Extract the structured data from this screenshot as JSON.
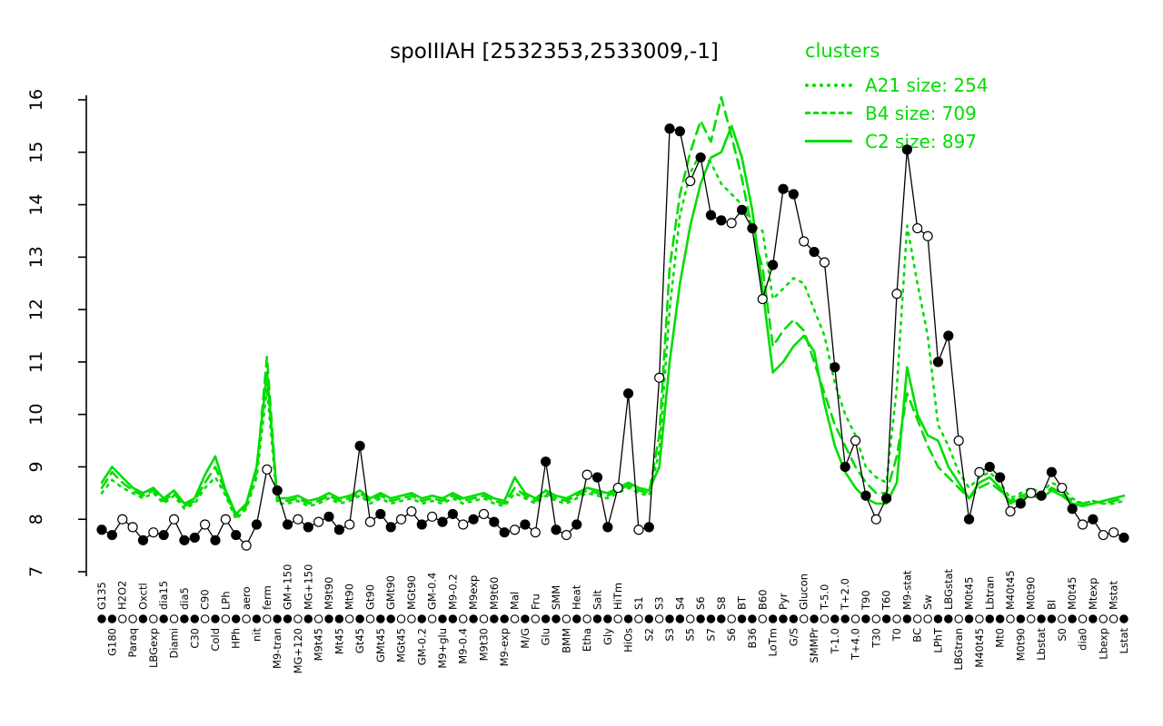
{
  "title": "spoIIIAH [2532353,2533009,-1]",
  "legend": {
    "heading": "clusters",
    "entries": [
      {
        "name": "A21",
        "label": "A21 size: 254",
        "style": "dotted"
      },
      {
        "name": "B4",
        "label": "B4 size: 709",
        "style": "dashed"
      },
      {
        "name": "C2",
        "label": "C2 size: 897",
        "style": "solid"
      }
    ]
  },
  "colors": {
    "cluster": "#00dd00",
    "gene": "#000000"
  },
  "chart_data": {
    "type": "line",
    "title": "spoIIIAH [2532353,2533009,-1]",
    "xlabel": "",
    "ylabel": "",
    "ylim": [
      7,
      16
    ],
    "yticks": [
      7,
      8,
      9,
      10,
      11,
      12,
      13,
      14,
      15,
      16
    ],
    "grid": false,
    "legend_position": "top-right",
    "categories": [
      "G135",
      "G180",
      "H2O2",
      "Paraq",
      "Oxctl",
      "LBGexp",
      "dia15",
      "Diami",
      "dia5",
      "C30",
      "C90",
      "Cold",
      "LPh",
      "HPh",
      "aero",
      "nit",
      "ferm",
      "M9-tran",
      "GM+150",
      "MG+120",
      "MG+150",
      "M9t45",
      "M9t90",
      "Mt45",
      "Mt90",
      "Gt45",
      "Gt90",
      "GMt45",
      "GMt90",
      "MGt45",
      "MGt90",
      "GM-0.2",
      "GM-0.4",
      "M9+glu",
      "M9-0.2",
      "M9-0.4",
      "M9exp",
      "M9t30",
      "M9t60",
      "M9-exp",
      "Mal",
      "M/G",
      "Fru",
      "Glu",
      "SMM",
      "BMM",
      "Heat",
      "Etha",
      "Salt",
      "Gly",
      "HiTm",
      "HiOs",
      "S1",
      "S2",
      "S3",
      "S3",
      "S4",
      "S5",
      "S6",
      "S7",
      "S8",
      "S6",
      "BT",
      "B36",
      "B60",
      "LoTm",
      "Pyr",
      "G/S",
      "Glucon",
      "SMMPr",
      "T-5.0",
      "T-1.0",
      "T+2.0",
      "T+4.0",
      "T90",
      "T30",
      "T60",
      "T0",
      "M9-stat",
      "BC",
      "Sw",
      "LPhT",
      "LBGstat",
      "LBGtran",
      "M0t45",
      "M40t45",
      "Lbtran",
      "Mt0",
      "M40t45",
      "M0t90",
      "M0t90",
      "Lbstat",
      "Bl",
      "S0",
      "M0t45",
      "dia0",
      "Mtexp",
      "Lbexp",
      "Mstat",
      "Lstat"
    ],
    "series": [
      {
        "name": "spoIIIAH gene profile",
        "color": "#000000",
        "style": "solid-markers",
        "values": [
          7.8,
          7.7,
          8.0,
          7.85,
          7.6,
          7.75,
          7.7,
          8.0,
          7.6,
          7.65,
          7.9,
          7.6,
          8.0,
          7.7,
          7.5,
          7.9,
          8.95,
          8.55,
          7.9,
          8.0,
          7.85,
          7.95,
          8.05,
          7.8,
          7.9,
          9.4,
          7.95,
          8.1,
          7.85,
          8.0,
          8.15,
          7.9,
          8.05,
          7.95,
          8.1,
          7.9,
          8.0,
          8.1,
          7.95,
          7.75,
          7.8,
          7.9,
          7.75,
          9.1,
          7.8,
          7.7,
          7.9,
          8.85,
          8.8,
          7.85,
          8.6,
          10.4,
          7.8,
          7.85,
          10.7,
          15.45,
          15.4,
          14.45,
          14.9,
          13.8,
          13.7,
          13.65,
          13.9,
          13.55,
          12.2,
          12.85,
          14.3,
          14.2,
          13.3,
          13.1,
          12.9,
          10.9,
          9.0,
          9.5,
          8.45,
          8.0,
          8.4,
          12.3,
          15.05,
          13.55,
          13.4,
          11.0,
          11.5,
          9.5,
          8.0,
          8.9,
          9.0,
          8.8,
          8.15,
          8.3,
          8.5,
          8.45,
          8.9,
          8.6,
          8.2,
          7.9,
          8.0,
          7.7,
          7.75,
          7.65
        ]
      },
      {
        "name": "A21 size: 254",
        "color": "#00dd00",
        "style": "dotted",
        "values": [
          8.5,
          8.75,
          8.6,
          8.5,
          8.4,
          8.5,
          8.3,
          8.45,
          8.2,
          8.3,
          8.6,
          8.8,
          8.45,
          8.0,
          8.2,
          8.8,
          10.5,
          8.3,
          8.3,
          8.35,
          8.25,
          8.3,
          8.4,
          8.3,
          8.35,
          8.45,
          8.3,
          8.4,
          8.3,
          8.35,
          8.4,
          8.3,
          8.35,
          8.3,
          8.4,
          8.3,
          8.35,
          8.4,
          8.3,
          8.25,
          8.5,
          8.4,
          8.3,
          8.45,
          8.35,
          8.3,
          8.4,
          8.5,
          8.45,
          8.4,
          8.5,
          8.6,
          8.5,
          8.45,
          9.3,
          12.0,
          13.8,
          14.6,
          15.0,
          14.8,
          14.4,
          14.2,
          14.0,
          13.6,
          13.5,
          12.2,
          12.4,
          12.6,
          12.5,
          12.0,
          11.5,
          10.6,
          10.0,
          9.6,
          9.0,
          8.8,
          8.7,
          10.5,
          13.6,
          12.5,
          11.5,
          9.8,
          9.4,
          8.9,
          8.6,
          8.8,
          8.9,
          8.7,
          8.4,
          8.5,
          8.6,
          8.5,
          8.7,
          8.6,
          8.4,
          8.3,
          8.35,
          8.3,
          8.3,
          8.35
        ]
      },
      {
        "name": "B4 size: 709",
        "color": "#00dd00",
        "style": "dashed",
        "values": [
          8.6,
          8.9,
          8.7,
          8.55,
          8.45,
          8.55,
          8.35,
          8.5,
          8.25,
          8.35,
          8.7,
          9.0,
          8.5,
          8.05,
          8.25,
          8.9,
          11.1,
          8.35,
          8.35,
          8.4,
          8.3,
          8.35,
          8.45,
          8.35,
          8.4,
          8.5,
          8.35,
          8.45,
          8.35,
          8.4,
          8.45,
          8.35,
          8.4,
          8.35,
          8.45,
          8.35,
          8.4,
          8.45,
          8.35,
          8.3,
          8.6,
          8.45,
          8.35,
          8.5,
          8.4,
          8.35,
          8.45,
          8.55,
          8.5,
          8.45,
          8.55,
          8.65,
          8.55,
          8.5,
          9.6,
          12.8,
          14.2,
          15.0,
          15.6,
          15.2,
          16.05,
          15.3,
          14.5,
          13.5,
          12.8,
          11.3,
          11.6,
          11.8,
          11.6,
          11.0,
          10.4,
          9.8,
          9.4,
          9.0,
          8.7,
          8.5,
          8.5,
          9.2,
          10.4,
          9.9,
          9.4,
          9.0,
          8.8,
          8.6,
          8.4,
          8.6,
          8.7,
          8.55,
          8.35,
          8.45,
          8.5,
          8.45,
          8.6,
          8.5,
          8.35,
          8.3,
          8.35,
          8.3,
          8.35,
          8.4
        ]
      },
      {
        "name": "C2 size: 897",
        "color": "#00dd00",
        "style": "solid",
        "values": [
          8.7,
          9.0,
          8.8,
          8.6,
          8.5,
          8.6,
          8.4,
          8.55,
          8.3,
          8.4,
          8.85,
          9.2,
          8.55,
          8.1,
          8.3,
          9.0,
          10.8,
          8.4,
          8.4,
          8.45,
          8.35,
          8.4,
          8.5,
          8.4,
          8.45,
          8.55,
          8.4,
          8.5,
          8.4,
          8.45,
          8.5,
          8.4,
          8.45,
          8.4,
          8.5,
          8.4,
          8.45,
          8.5,
          8.4,
          8.35,
          8.8,
          8.5,
          8.4,
          8.55,
          8.45,
          8.4,
          8.5,
          8.6,
          8.55,
          8.5,
          8.6,
          8.7,
          8.6,
          8.55,
          9.0,
          11.0,
          12.5,
          13.6,
          14.4,
          14.9,
          15.0,
          15.5,
          14.9,
          13.9,
          12.4,
          10.8,
          11.0,
          11.3,
          11.5,
          11.2,
          10.2,
          9.4,
          8.9,
          8.6,
          8.4,
          8.3,
          8.3,
          8.7,
          10.9,
          10.0,
          9.6,
          9.5,
          9.0,
          8.7,
          8.4,
          8.7,
          8.8,
          8.6,
          8.3,
          8.4,
          8.45,
          8.4,
          8.55,
          8.45,
          8.3,
          8.25,
          8.3,
          8.35,
          8.4,
          8.45
        ]
      }
    ],
    "marker_filled": [
      1,
      1,
      0,
      0,
      1,
      0,
      1,
      0,
      1,
      1,
      0,
      1,
      0,
      1,
      0,
      1,
      0,
      1,
      1,
      0,
      1,
      0,
      1,
      1,
      0,
      1,
      0,
      1,
      1,
      0,
      0,
      1,
      0,
      1,
      1,
      0,
      1,
      0,
      1,
      1,
      0,
      1,
      0,
      1,
      1,
      0,
      1,
      0,
      1,
      1,
      0,
      1,
      0,
      1,
      0,
      1,
      1,
      0,
      1,
      1,
      1,
      0,
      1,
      1,
      0,
      1,
      1,
      1,
      0,
      1,
      0,
      1,
      1,
      0,
      1,
      0,
      1,
      0,
      1,
      0,
      0,
      1,
      1,
      0,
      1,
      0,
      1,
      1,
      0,
      1,
      0,
      1,
      1,
      0,
      1,
      0,
      1,
      0,
      0,
      1
    ]
  }
}
